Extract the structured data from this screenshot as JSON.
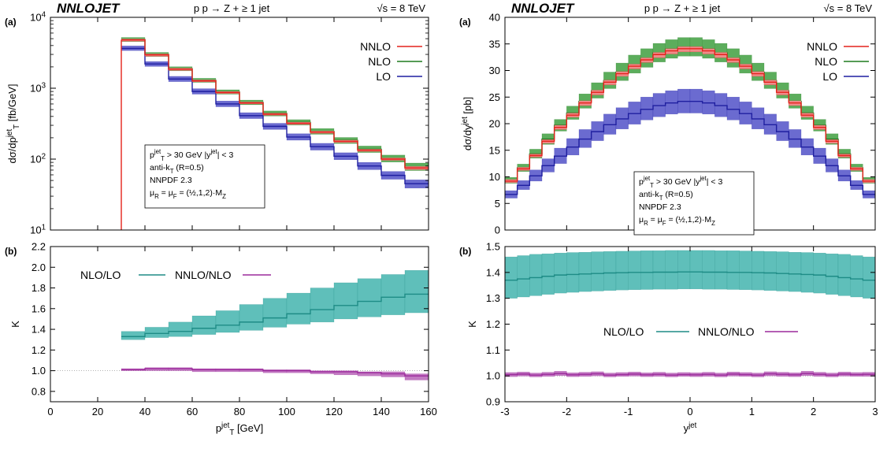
{
  "colors": {
    "nnlo_line": "#e4221b",
    "nnlo_band": "#f08a8a",
    "nlo_line": "#1f7a1f",
    "nlo_band": "#5cad5c",
    "lo_line": "#1f1fa0",
    "lo_band": "#6b6bd0",
    "k_nlo_lo_line": "#1e8c86",
    "k_nlo_lo_band": "#5fbfba",
    "k_nnlo_nlo_line": "#9c2a9c",
    "k_nnlo_nlo_band": "#c27ac2"
  },
  "chart_data": [
    {
      "id": "pt-spectrum",
      "type": "line",
      "brand": "NNLOJET",
      "panel_tag": "(a)",
      "title": "p p → Z + ≥ 1 jet",
      "energy": "√s = 8 TeV",
      "xlabel": "",
      "ylabel_main": "dσ/dp",
      "ylabel_sup": "jet",
      "ylabel_sub": "T",
      "ylabel_unit": " [fb/GeV]",
      "yscale": "log",
      "xlim": [
        0,
        160
      ],
      "ylim": [
        10,
        10000
      ],
      "y_ticks": [
        {
          "v": 10,
          "base": "10",
          "exp": "1"
        },
        {
          "v": 100,
          "base": "10",
          "exp": "2"
        },
        {
          "v": 1000,
          "base": "10",
          "exp": "3"
        },
        {
          "v": 10000,
          "base": "10",
          "exp": "4"
        }
      ],
      "legend": [
        "NNLO",
        "NLO",
        "LO"
      ],
      "info_lines": [
        "p_T^jet > 30 GeV   |y^jet| < 3",
        "anti-k_T   (R=0.5)",
        "NNPDF 2.3",
        "μ_R = μ_F = (½,1,2)·M_Z"
      ],
      "bin_edges": [
        30,
        40,
        50,
        60,
        70,
        80,
        90,
        100,
        110,
        120,
        130,
        140,
        150,
        160
      ],
      "series": [
        {
          "name": "NNLO",
          "values": [
            4800,
            2950,
            1850,
            1270,
            870,
            620,
            430,
            320,
            240,
            178,
            133,
            100,
            75
          ],
          "lo": [
            4600,
            2820,
            1780,
            1230,
            840,
            600,
            415,
            308,
            231,
            171,
            128,
            96,
            71
          ],
          "hi": [
            4950,
            3050,
            1920,
            1310,
            900,
            640,
            445,
            332,
            249,
            185,
            138,
            104,
            79
          ]
        },
        {
          "name": "NLO",
          "values": [
            4850,
            3000,
            1880,
            1290,
            885,
            630,
            440,
            330,
            245,
            183,
            138,
            102,
            78
          ],
          "lo": [
            4550,
            2800,
            1760,
            1210,
            825,
            585,
            405,
            302,
            224,
            166,
            124,
            91,
            69
          ],
          "hi": [
            5200,
            3200,
            2010,
            1380,
            950,
            680,
            478,
            360,
            270,
            202,
            153,
            114,
            88
          ]
        },
        {
          "name": "LO",
          "values": [
            3650,
            2200,
            1350,
            900,
            600,
            410,
            290,
            205,
            150,
            110,
            80,
            59,
            45
          ],
          "lo": [
            3400,
            2030,
            1240,
            825,
            548,
            373,
            262,
            185,
            134,
            98,
            71,
            52,
            39
          ],
          "hi": [
            3950,
            2380,
            1470,
            985,
            660,
            452,
            320,
            228,
            167,
            123,
            90,
            67,
            51
          ]
        }
      ]
    },
    {
      "id": "pt-kfactor",
      "type": "line",
      "panel_tag": "(b)",
      "xlabel_main": "p",
      "xlabel_sup": "jet",
      "xlabel_sub": "T",
      "xlabel_unit": " [GeV]",
      "ylabel": "K",
      "xlim": [
        0,
        160
      ],
      "ylim": [
        0.7,
        2.2
      ],
      "x_ticks": [
        0,
        20,
        40,
        60,
        80,
        100,
        120,
        140,
        160
      ],
      "y_ticks": [
        0.8,
        1.0,
        1.2,
        1.4,
        1.6,
        1.8,
        2.0,
        2.2
      ],
      "reference_line": 1.0,
      "legend": [
        "NLO/LO",
        "NNLO/NLO"
      ],
      "bin_edges": [
        30,
        40,
        50,
        60,
        70,
        80,
        90,
        100,
        110,
        120,
        130,
        140,
        150,
        160
      ],
      "series": [
        {
          "name": "NLO/LO",
          "values": [
            1.33,
            1.36,
            1.38,
            1.41,
            1.44,
            1.47,
            1.51,
            1.55,
            1.59,
            1.63,
            1.67,
            1.71,
            1.74
          ],
          "lo": [
            1.3,
            1.32,
            1.33,
            1.35,
            1.37,
            1.39,
            1.42,
            1.45,
            1.47,
            1.5,
            1.52,
            1.54,
            1.56
          ],
          "hi": [
            1.38,
            1.42,
            1.47,
            1.53,
            1.58,
            1.64,
            1.7,
            1.75,
            1.8,
            1.85,
            1.89,
            1.93,
            1.97
          ]
        },
        {
          "name": "NNLO/NLO",
          "values": [
            1.01,
            1.02,
            1.02,
            1.01,
            1.01,
            1.01,
            1.0,
            1.0,
            0.99,
            0.99,
            0.98,
            0.97,
            0.95
          ],
          "lo": [
            1.0,
            1.0,
            1.0,
            0.99,
            0.99,
            0.99,
            0.98,
            0.98,
            0.97,
            0.96,
            0.95,
            0.94,
            0.91
          ],
          "hi": [
            1.02,
            1.03,
            1.03,
            1.02,
            1.02,
            1.02,
            1.01,
            1.01,
            1.0,
            1.0,
            0.99,
            0.99,
            0.97
          ]
        }
      ]
    },
    {
      "id": "y-spectrum",
      "type": "line",
      "brand": "NNLOJET",
      "panel_tag": "(a)",
      "title": "p p → Z + ≥ 1 jet",
      "energy": "√s = 8 TeV",
      "xlabel": "",
      "ylabel_main": "dσ/dy",
      "ylabel_sup": "jet",
      "ylabel_sub": "",
      "ylabel_unit": " [pb]",
      "yscale": "linear",
      "xlim": [
        -3,
        3
      ],
      "ylim": [
        0,
        40
      ],
      "y_ticks": [
        0,
        5,
        10,
        15,
        20,
        25,
        30,
        35,
        40
      ],
      "legend": [
        "NNLO",
        "NLO",
        "LO"
      ],
      "info_lines": [
        "p_T^jet > 30 GeV   |y^jet| < 3",
        "anti-k_T   (R=0.5)",
        "NNPDF 2.3",
        "μ_R = μ_F = (½,1,2)·M_Z"
      ],
      "bin_edges": [
        -3.0,
        -2.8,
        -2.6,
        -2.4,
        -2.2,
        -2.0,
        -1.8,
        -1.6,
        -1.4,
        -1.2,
        -1.0,
        -0.8,
        -0.6,
        -0.4,
        -0.2,
        0.0,
        0.2,
        0.4,
        0.6,
        0.8,
        1.0,
        1.2,
        1.4,
        1.6,
        1.8,
        2.0,
        2.2,
        2.4,
        2.6,
        2.8,
        3.0
      ],
      "series": [
        {
          "name": "NNLO",
          "values": [
            9.2,
            11.5,
            14.0,
            16.7,
            19.3,
            21.6,
            23.9,
            25.9,
            27.8,
            29.4,
            30.8,
            32.0,
            33.0,
            33.7,
            34.1,
            34.1,
            33.7,
            33.0,
            32.0,
            30.8,
            29.4,
            27.8,
            25.9,
            23.9,
            21.6,
            19.3,
            16.7,
            14.0,
            11.5,
            9.2
          ],
          "lo": [
            8.9,
            11.2,
            13.7,
            16.3,
            18.9,
            21.2,
            23.4,
            25.4,
            27.3,
            28.9,
            30.3,
            31.5,
            32.4,
            33.1,
            33.5,
            33.5,
            33.1,
            32.4,
            31.5,
            30.3,
            28.9,
            27.3,
            25.4,
            23.4,
            21.2,
            18.9,
            16.3,
            13.7,
            11.2,
            8.9
          ],
          "hi": [
            9.5,
            11.8,
            14.3,
            17.0,
            19.7,
            22.0,
            24.3,
            26.3,
            28.2,
            29.8,
            31.2,
            32.4,
            33.4,
            34.1,
            34.5,
            34.5,
            34.1,
            33.4,
            32.4,
            31.2,
            29.8,
            28.2,
            26.3,
            24.3,
            22.0,
            19.7,
            17.0,
            14.3,
            11.8,
            9.5
          ]
        },
        {
          "name": "NLO",
          "values": [
            9.3,
            11.7,
            14.3,
            17.1,
            19.7,
            22.0,
            24.2,
            26.2,
            28.1,
            29.7,
            31.1,
            32.3,
            33.3,
            34.0,
            34.4,
            34.4,
            34.0,
            33.3,
            32.3,
            31.1,
            29.7,
            28.1,
            26.2,
            24.2,
            22.0,
            19.7,
            17.1,
            14.3,
            11.7,
            9.3
          ],
          "lo": [
            8.8,
            11.0,
            13.5,
            16.1,
            18.6,
            20.8,
            22.9,
            24.8,
            26.6,
            28.1,
            29.5,
            30.6,
            31.6,
            32.3,
            32.7,
            32.7,
            32.3,
            31.6,
            30.6,
            29.5,
            28.1,
            26.6,
            24.8,
            22.9,
            20.8,
            18.6,
            16.1,
            13.5,
            11.0,
            8.8
          ],
          "hi": [
            9.9,
            12.4,
            15.2,
            18.1,
            20.8,
            23.3,
            25.6,
            27.7,
            29.7,
            31.4,
            32.9,
            34.1,
            35.1,
            35.8,
            36.2,
            36.2,
            35.8,
            35.1,
            34.1,
            32.9,
            31.4,
            29.7,
            27.7,
            25.6,
            23.3,
            20.8,
            18.1,
            15.2,
            12.4,
            9.9
          ]
        },
        {
          "name": "LO",
          "values": [
            6.7,
            8.4,
            10.2,
            12.1,
            13.9,
            15.6,
            17.1,
            18.5,
            19.8,
            20.9,
            21.9,
            22.7,
            23.4,
            23.9,
            24.2,
            24.2,
            23.9,
            23.4,
            22.7,
            21.9,
            20.9,
            19.8,
            18.5,
            17.1,
            15.6,
            13.9,
            12.1,
            10.2,
            8.4,
            6.7
          ],
          "lo": [
            6.0,
            7.6,
            9.2,
            10.9,
            12.5,
            14.1,
            15.5,
            16.8,
            18.0,
            19.0,
            19.9,
            20.7,
            21.3,
            21.8,
            22.0,
            22.0,
            21.8,
            21.3,
            20.7,
            19.9,
            19.0,
            18.0,
            16.8,
            15.5,
            14.1,
            12.5,
            10.9,
            9.2,
            7.6,
            6.0
          ],
          "hi": [
            7.4,
            9.3,
            11.3,
            13.4,
            15.4,
            17.2,
            18.9,
            20.4,
            21.8,
            23.0,
            24.1,
            25.0,
            25.7,
            26.2,
            26.5,
            26.5,
            26.2,
            25.7,
            25.0,
            24.1,
            23.0,
            21.8,
            20.4,
            18.9,
            17.2,
            15.4,
            13.4,
            11.3,
            9.3,
            7.4
          ]
        }
      ]
    },
    {
      "id": "y-kfactor",
      "type": "line",
      "panel_tag": "(b)",
      "xlabel_main": "y",
      "xlabel_sup": "jet",
      "xlabel_sub": "",
      "xlabel_unit": "",
      "ylabel": "K",
      "xlim": [
        -3,
        3
      ],
      "ylim": [
        0.9,
        1.5
      ],
      "x_ticks": [
        -3,
        -2,
        -1,
        0,
        1,
        2,
        3
      ],
      "y_ticks": [
        0.9,
        1.0,
        1.1,
        1.2,
        1.3,
        1.4,
        1.5
      ],
      "reference_line": 1.0,
      "legend": [
        "NLO/LO",
        "NNLO/NLO"
      ],
      "bin_edges": [
        -3.0,
        -2.8,
        -2.6,
        -2.4,
        -2.2,
        -2.0,
        -1.8,
        -1.6,
        -1.4,
        -1.2,
        -1.0,
        -0.8,
        -0.6,
        -0.4,
        -0.2,
        0.0,
        0.2,
        0.4,
        0.6,
        0.8,
        1.0,
        1.2,
        1.4,
        1.6,
        1.8,
        2.0,
        2.2,
        2.4,
        2.6,
        2.8,
        3.0
      ],
      "series": [
        {
          "name": "NLO/LO",
          "values": [
            1.37,
            1.375,
            1.38,
            1.385,
            1.39,
            1.392,
            1.394,
            1.396,
            1.398,
            1.399,
            1.4,
            1.4,
            1.401,
            1.401,
            1.402,
            1.402,
            1.401,
            1.401,
            1.4,
            1.4,
            1.399,
            1.398,
            1.396,
            1.394,
            1.392,
            1.39,
            1.385,
            1.38,
            1.375,
            1.37
          ],
          "lo": [
            1.3,
            1.305,
            1.31,
            1.315,
            1.32,
            1.323,
            1.326,
            1.328,
            1.33,
            1.332,
            1.333,
            1.334,
            1.335,
            1.335,
            1.336,
            1.336,
            1.335,
            1.335,
            1.334,
            1.333,
            1.332,
            1.33,
            1.328,
            1.326,
            1.323,
            1.32,
            1.315,
            1.31,
            1.305,
            1.3
          ],
          "hi": [
            1.46,
            1.465,
            1.47,
            1.472,
            1.475,
            1.477,
            1.478,
            1.48,
            1.481,
            1.482,
            1.483,
            1.484,
            1.484,
            1.485,
            1.485,
            1.485,
            1.485,
            1.484,
            1.484,
            1.483,
            1.482,
            1.481,
            1.48,
            1.478,
            1.477,
            1.475,
            1.472,
            1.47,
            1.465,
            1.46
          ]
        },
        {
          "name": "NNLO/NLO",
          "values": [
            1.005,
            1.007,
            1.003,
            1.006,
            1.009,
            1.004,
            1.006,
            1.008,
            1.003,
            1.005,
            1.007,
            1.004,
            1.006,
            1.003,
            1.005,
            1.004,
            1.006,
            1.003,
            1.007,
            1.005,
            1.003,
            1.008,
            1.006,
            1.004,
            1.009,
            1.006,
            1.003,
            1.007,
            1.005,
            1.006
          ],
          "lo": [
            0.997,
            0.999,
            0.996,
            0.998,
            1.001,
            0.997,
            0.998,
            1.0,
            0.996,
            0.998,
            0.999,
            0.997,
            0.998,
            0.996,
            0.998,
            0.997,
            0.998,
            0.996,
            0.999,
            0.998,
            0.996,
            1.0,
            0.998,
            0.997,
            1.001,
            0.998,
            0.996,
            0.999,
            0.998,
            0.998
          ],
          "hi": [
            1.013,
            1.015,
            1.011,
            1.014,
            1.018,
            1.012,
            1.014,
            1.016,
            1.011,
            1.013,
            1.015,
            1.012,
            1.014,
            1.011,
            1.013,
            1.012,
            1.014,
            1.011,
            1.015,
            1.013,
            1.011,
            1.016,
            1.014,
            1.012,
            1.018,
            1.014,
            1.011,
            1.015,
            1.013,
            1.014
          ]
        }
      ]
    }
  ]
}
